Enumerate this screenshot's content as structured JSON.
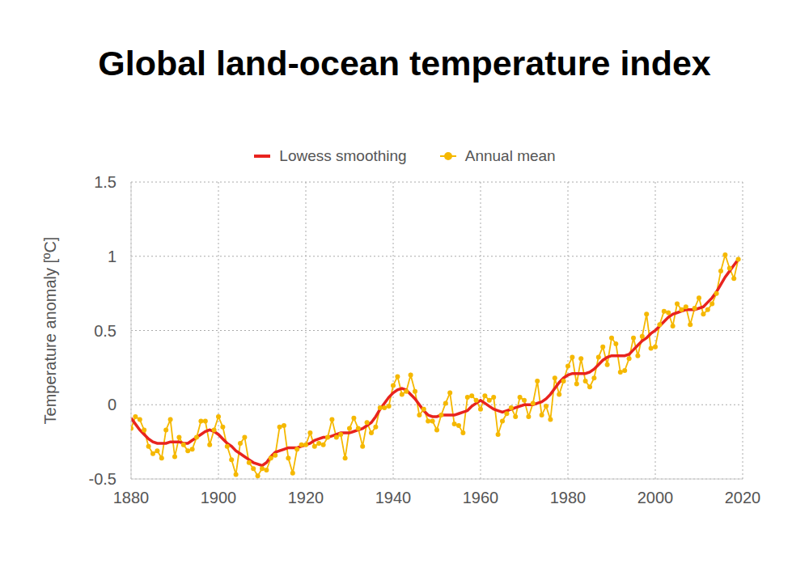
{
  "chart_data": {
    "type": "line",
    "title": "Global land-ocean temperature index",
    "y_label": "Temperature anomaly [ºC]",
    "x": [
      1880,
      1881,
      1882,
      1883,
      1884,
      1885,
      1886,
      1887,
      1888,
      1889,
      1890,
      1891,
      1892,
      1893,
      1894,
      1895,
      1896,
      1897,
      1898,
      1899,
      1900,
      1901,
      1902,
      1903,
      1904,
      1905,
      1906,
      1907,
      1908,
      1909,
      1910,
      1911,
      1912,
      1913,
      1914,
      1915,
      1916,
      1917,
      1918,
      1919,
      1920,
      1921,
      1922,
      1923,
      1924,
      1925,
      1926,
      1927,
      1928,
      1929,
      1930,
      1931,
      1932,
      1933,
      1934,
      1935,
      1936,
      1937,
      1938,
      1939,
      1940,
      1941,
      1942,
      1943,
      1944,
      1945,
      1946,
      1947,
      1948,
      1949,
      1950,
      1951,
      1952,
      1953,
      1954,
      1955,
      1956,
      1957,
      1958,
      1959,
      1960,
      1961,
      1962,
      1963,
      1964,
      1965,
      1966,
      1967,
      1968,
      1969,
      1970,
      1971,
      1972,
      1973,
      1974,
      1975,
      1976,
      1977,
      1978,
      1979,
      1980,
      1981,
      1982,
      1983,
      1984,
      1985,
      1986,
      1987,
      1988,
      1989,
      1990,
      1991,
      1992,
      1993,
      1994,
      1995,
      1996,
      1997,
      1998,
      1999,
      2000,
      2001,
      2002,
      2003,
      2004,
      2005,
      2006,
      2007,
      2008,
      2009,
      2010,
      2011,
      2012,
      2013,
      2014,
      2015,
      2016,
      2017,
      2018,
      2019
    ],
    "series": [
      {
        "name": "Lowess smoothing",
        "color": "#e8231e",
        "marker": "none",
        "line_style": "solid",
        "values": [
          -0.09,
          -0.13,
          -0.17,
          -0.2,
          -0.23,
          -0.25,
          -0.26,
          -0.26,
          -0.26,
          -0.25,
          -0.25,
          -0.25,
          -0.26,
          -0.26,
          -0.24,
          -0.22,
          -0.2,
          -0.18,
          -0.17,
          -0.18,
          -0.2,
          -0.23,
          -0.26,
          -0.28,
          -0.31,
          -0.33,
          -0.35,
          -0.37,
          -0.39,
          -0.4,
          -0.41,
          -0.39,
          -0.35,
          -0.32,
          -0.31,
          -0.3,
          -0.29,
          -0.29,
          -0.29,
          -0.28,
          -0.27,
          -0.26,
          -0.24,
          -0.23,
          -0.22,
          -0.22,
          -0.21,
          -0.2,
          -0.19,
          -0.19,
          -0.19,
          -0.18,
          -0.17,
          -0.16,
          -0.14,
          -0.12,
          -0.08,
          -0.03,
          0.01,
          0.05,
          0.08,
          0.1,
          0.11,
          0.1,
          0.07,
          0.04,
          0.0,
          -0.04,
          -0.07,
          -0.08,
          -0.08,
          -0.07,
          -0.07,
          -0.07,
          -0.07,
          -0.06,
          -0.05,
          -0.04,
          -0.01,
          0.01,
          0.03,
          0.01,
          -0.01,
          -0.03,
          -0.04,
          -0.05,
          -0.04,
          -0.03,
          -0.02,
          -0.01,
          0.0,
          0.0,
          0.0,
          0.01,
          0.02,
          0.04,
          0.07,
          0.11,
          0.15,
          0.18,
          0.2,
          0.21,
          0.21,
          0.21,
          0.21,
          0.22,
          0.24,
          0.27,
          0.3,
          0.32,
          0.33,
          0.33,
          0.33,
          0.33,
          0.34,
          0.37,
          0.4,
          0.43,
          0.45,
          0.48,
          0.5,
          0.53,
          0.56,
          0.59,
          0.61,
          0.62,
          0.63,
          0.64,
          0.64,
          0.64,
          0.65,
          0.66,
          0.69,
          0.72,
          0.76,
          0.81,
          0.86,
          0.9,
          0.94,
          0.98
        ]
      },
      {
        "name": "Annual mean",
        "color": "#f5b800",
        "marker": "circle",
        "line_style": "solid",
        "values": [
          -0.16,
          -0.08,
          -0.1,
          -0.17,
          -0.28,
          -0.33,
          -0.31,
          -0.36,
          -0.17,
          -0.1,
          -0.35,
          -0.22,
          -0.27,
          -0.31,
          -0.3,
          -0.22,
          -0.11,
          -0.11,
          -0.27,
          -0.17,
          -0.08,
          -0.15,
          -0.28,
          -0.37,
          -0.47,
          -0.26,
          -0.22,
          -0.39,
          -0.43,
          -0.48,
          -0.43,
          -0.44,
          -0.36,
          -0.34,
          -0.15,
          -0.14,
          -0.36,
          -0.46,
          -0.3,
          -0.27,
          -0.27,
          -0.19,
          -0.28,
          -0.26,
          -0.27,
          -0.22,
          -0.1,
          -0.22,
          -0.2,
          -0.36,
          -0.16,
          -0.09,
          -0.16,
          -0.28,
          -0.12,
          -0.19,
          -0.15,
          -0.02,
          -0.02,
          -0.01,
          0.13,
          0.19,
          0.07,
          0.09,
          0.2,
          0.09,
          -0.07,
          -0.03,
          -0.11,
          -0.11,
          -0.17,
          -0.07,
          0.01,
          0.08,
          -0.13,
          -0.14,
          -0.19,
          0.05,
          0.06,
          0.03,
          -0.03,
          0.06,
          0.03,
          0.05,
          -0.2,
          -0.11,
          -0.06,
          -0.02,
          -0.08,
          0.05,
          0.03,
          -0.08,
          0.01,
          0.16,
          -0.07,
          -0.01,
          -0.1,
          0.18,
          0.07,
          0.16,
          0.26,
          0.32,
          0.14,
          0.31,
          0.16,
          0.12,
          0.18,
          0.32,
          0.39,
          0.27,
          0.45,
          0.41,
          0.22,
          0.23,
          0.31,
          0.45,
          0.33,
          0.46,
          0.61,
          0.38,
          0.39,
          0.54,
          0.63,
          0.62,
          0.53,
          0.68,
          0.64,
          0.66,
          0.54,
          0.65,
          0.72,
          0.61,
          0.64,
          0.68,
          0.75,
          0.9,
          1.01,
          0.92,
          0.85,
          0.98
        ]
      }
    ],
    "xlim": [
      1880,
      2020
    ],
    "xticks": [
      1880,
      1900,
      1920,
      1940,
      1960,
      1980,
      2000,
      2020
    ],
    "ylim": [
      -0.5,
      1.5
    ],
    "yticks": [
      -0.5,
      0,
      0.5,
      1,
      1.5
    ],
    "grid": true,
    "legend": "top"
  }
}
